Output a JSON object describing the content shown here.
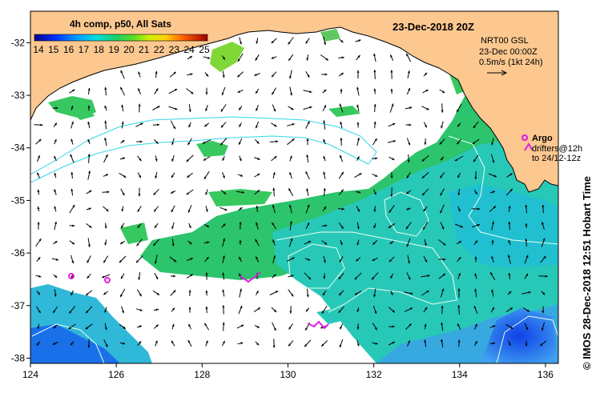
{
  "title": "23-Dec-2018 20Z",
  "colorbar": {
    "title": "4h comp, p50, All Sats",
    "ticks": [
      "14",
      "15",
      "16",
      "17",
      "18",
      "19",
      "20",
      "21",
      "22",
      "23",
      "24",
      "25"
    ]
  },
  "velocity": {
    "source": "NRT00 GSL",
    "time": "23-Dec 00:00Z",
    "scale": "0.5m/s (1kt 24h)"
  },
  "legend": {
    "argo": "Argo",
    "drifters": "drifters@12h",
    "drifters_to": "to 24/12-12z"
  },
  "side_label": "© IMOS 28-Dec-2018 12:51 Hobart Time",
  "axes": {
    "x_ticks": [
      "124",
      "126",
      "128",
      "130",
      "132",
      "134",
      "136"
    ],
    "y_ticks": [
      "-32",
      "-33",
      "-34",
      "-35",
      "-36",
      "-37",
      "-38"
    ],
    "lon_range": [
      124,
      136.3
    ],
    "lat_range": [
      -38.1,
      -31.4
    ]
  },
  "colors": {
    "land": "#fcc890",
    "ocean_bg": "#ffffff",
    "argo": "#e020e0",
    "contour": "#30d8e8"
  }
}
